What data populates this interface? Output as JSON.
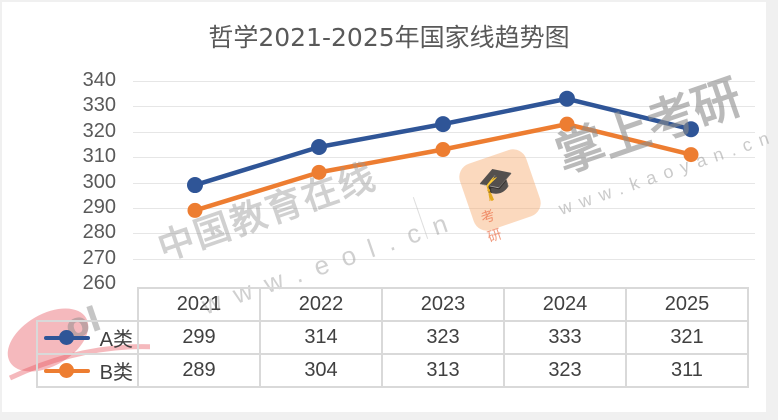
{
  "chart_data": {
    "type": "line",
    "title": "哲学2021-2025年国家线趋势图",
    "categories": [
      "2021",
      "2022",
      "2023",
      "2024",
      "2025"
    ],
    "series": [
      {
        "name": "A类",
        "color": "#2f5597",
        "values": [
          299,
          314,
          323,
          333,
          321
        ]
      },
      {
        "name": "B类",
        "color": "#ed7d31",
        "values": [
          289,
          304,
          313,
          323,
          311
        ]
      }
    ],
    "xlabel": "",
    "ylabel": "",
    "ylim": [
      260,
      340
    ],
    "yticks": [
      "340",
      "330",
      "320",
      "310",
      "300",
      "290",
      "280",
      "270",
      "260"
    ],
    "grid": true,
    "legend_position": "data-table-left",
    "data_table": true
  },
  "title": "哲学2021-2025年国家线趋势图",
  "table": {
    "header": [
      "2021",
      "2022",
      "2023",
      "2024",
      "2025"
    ],
    "rows": [
      {
        "label": "A类",
        "values": [
          "299",
          "314",
          "323",
          "333",
          "321"
        ]
      },
      {
        "label": "B类",
        "values": [
          "289",
          "304",
          "313",
          "323",
          "311"
        ]
      }
    ]
  },
  "watermarks": {
    "eol_cn": "中国教育在线",
    "eol_url": "www.eol.cn",
    "kaoyan_cn": "掌上考研",
    "kaoyan_url": "www.kaoyan.cn",
    "kaoyan_badge": "考 研"
  }
}
